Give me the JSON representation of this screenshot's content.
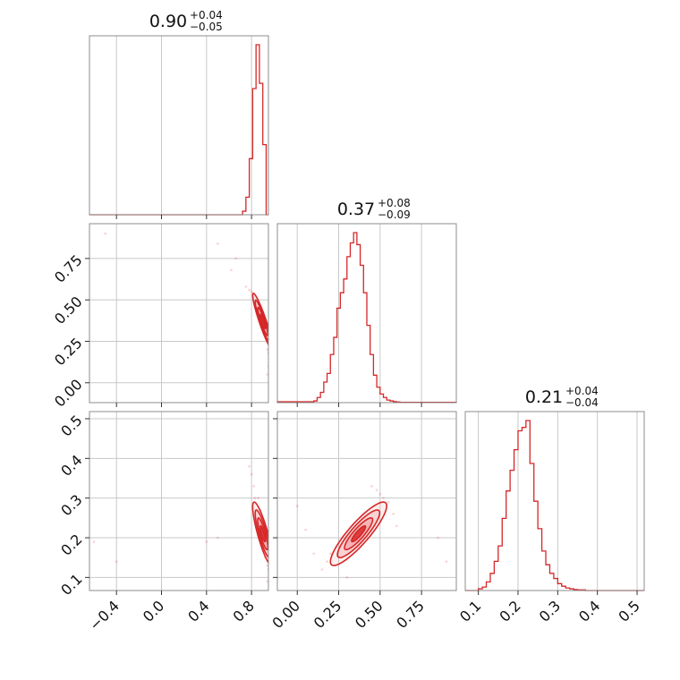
{
  "figure": {
    "color": "#d62728",
    "light_color": "#f2a0a2",
    "grid": true
  },
  "parameters": [
    {
      "title_value": "0.90",
      "title_plus": "+0.04",
      "title_minus": "−0.05",
      "range": [
        -0.64,
        0.95
      ],
      "ticks": [
        -0.4,
        0.0,
        0.4,
        0.8
      ],
      "tick_labels": [
        "−0.4",
        "0.0",
        "0.4",
        "0.8"
      ],
      "vticks": [],
      "vtick_labels": []
    },
    {
      "title_value": "0.37",
      "title_plus": "+0.08",
      "title_minus": "−0.09",
      "range": [
        -0.12,
        0.96
      ],
      "ticks": [
        0.0,
        0.25,
        0.5,
        0.75
      ],
      "tick_labels": [
        "0.00",
        "0.25",
        "0.50",
        "0.75"
      ],
      "vticks": [
        0.0,
        0.25,
        0.5,
        0.75
      ],
      "vtick_labels": [
        "0.00",
        "0.25",
        "0.50",
        "0.75"
      ]
    },
    {
      "title_value": "0.21",
      "title_plus": "+0.04",
      "title_minus": "−0.04",
      "range": [
        0.067,
        0.518
      ],
      "ticks": [
        0.1,
        0.2,
        0.3,
        0.4,
        0.5
      ],
      "tick_labels": [
        "0.1",
        "0.2",
        "0.3",
        "0.4",
        "0.5"
      ],
      "vticks": [
        0.1,
        0.2,
        0.3,
        0.4,
        0.5
      ],
      "vtick_labels": [
        "0.1",
        "0.2",
        "0.3",
        "0.4",
        "0.5"
      ]
    }
  ],
  "chart_data": [
    {
      "type": "histogram",
      "parameter_index": 0,
      "edges": [
        -0.64,
        0.72,
        0.75,
        0.78,
        0.81,
        0.84,
        0.87,
        0.9,
        0.93,
        0.95
      ],
      "counts": [
        0.0,
        0.02,
        0.1,
        0.32,
        0.72,
        0.97,
        0.75,
        0.4,
        0.0
      ]
    },
    {
      "type": "histogram",
      "parameter_index": 1,
      "edges": [
        -0.12,
        0.1,
        0.12,
        0.14,
        0.16,
        0.18,
        0.2,
        0.22,
        0.24,
        0.26,
        0.28,
        0.3,
        0.32,
        0.34,
        0.36,
        0.38,
        0.4,
        0.42,
        0.44,
        0.46,
        0.48,
        0.5,
        0.52,
        0.54,
        0.56,
        0.58,
        0.6,
        0.62,
        0.96
      ],
      "counts": [
        0.005,
        0.01,
        0.03,
        0.06,
        0.12,
        0.17,
        0.28,
        0.38,
        0.55,
        0.64,
        0.72,
        0.85,
        0.93,
        0.99,
        0.92,
        0.8,
        0.64,
        0.45,
        0.28,
        0.16,
        0.09,
        0.05,
        0.03,
        0.015,
        0.01,
        0.006,
        0.004,
        0.002
      ]
    },
    {
      "type": "histogram",
      "parameter_index": 2,
      "edges": [
        0.067,
        0.1,
        0.11,
        0.12,
        0.13,
        0.14,
        0.15,
        0.16,
        0.17,
        0.18,
        0.19,
        0.2,
        0.21,
        0.22,
        0.23,
        0.24,
        0.25,
        0.26,
        0.27,
        0.28,
        0.29,
        0.3,
        0.31,
        0.32,
        0.33,
        0.34,
        0.35,
        0.37,
        0.518
      ],
      "counts": [
        0.0,
        0.01,
        0.02,
        0.05,
        0.1,
        0.17,
        0.26,
        0.42,
        0.58,
        0.7,
        0.82,
        0.93,
        0.95,
        0.99,
        0.74,
        0.52,
        0.36,
        0.23,
        0.15,
        0.1,
        0.07,
        0.04,
        0.025,
        0.015,
        0.01,
        0.006,
        0.004,
        0.0
      ]
    },
    {
      "type": "contour",
      "x_parameter_index": 0,
      "y_parameter_index": 1,
      "center": [
        0.9,
        0.37
      ],
      "sigma": [
        0.045,
        0.085
      ],
      "correlation": -0.93,
      "levels_sigma": [
        0.5,
        1.0,
        1.5,
        2.0
      ],
      "scatter_points": [
        [
          0.75,
          0.58
        ],
        [
          0.78,
          0.56
        ],
        [
          0.8,
          0.55
        ],
        [
          0.82,
          0.52
        ],
        [
          0.84,
          0.5
        ],
        [
          0.86,
          0.47
        ],
        [
          0.88,
          0.44
        ],
        [
          0.91,
          0.3
        ],
        [
          0.93,
          0.27
        ],
        [
          0.94,
          0.2
        ],
        [
          0.95,
          0.18
        ],
        [
          0.66,
          0.75
        ],
        [
          0.5,
          0.84
        ],
        [
          0.62,
          0.68
        ],
        [
          -0.5,
          0.9
        ],
        [
          0.95,
          0.1
        ],
        [
          0.94,
          0.05
        ]
      ]
    },
    {
      "type": "contour",
      "x_parameter_index": 0,
      "y_parameter_index": 2,
      "center": [
        0.9,
        0.21
      ],
      "sigma": [
        0.045,
        0.04
      ],
      "correlation": -0.85,
      "levels_sigma": [
        0.5,
        1.0,
        1.5,
        2.0
      ],
      "scatter_points": [
        [
          0.8,
          0.36
        ],
        [
          0.82,
          0.33
        ],
        [
          0.83,
          0.3
        ],
        [
          0.86,
          0.3
        ],
        [
          0.88,
          0.27
        ],
        [
          0.92,
          0.15
        ],
        [
          0.94,
          0.13
        ],
        [
          0.95,
          0.12
        ],
        [
          0.78,
          0.38
        ],
        [
          0.94,
          0.09
        ],
        [
          0.5,
          0.2
        ],
        [
          0.4,
          0.19
        ],
        [
          -0.6,
          0.19
        ],
        [
          -0.4,
          0.14
        ]
      ]
    },
    {
      "type": "contour",
      "x_parameter_index": 1,
      "y_parameter_index": 2,
      "center": [
        0.37,
        0.21
      ],
      "sigma": [
        0.085,
        0.04
      ],
      "correlation": 0.88,
      "levels_sigma": [
        0.5,
        1.0,
        1.5,
        2.0
      ],
      "scatter_points": [
        [
          0.15,
          0.12
        ],
        [
          0.18,
          0.14
        ],
        [
          0.2,
          0.16
        ],
        [
          0.5,
          0.31
        ],
        [
          0.52,
          0.3
        ],
        [
          0.55,
          0.29
        ],
        [
          0.48,
          0.32
        ],
        [
          0.45,
          0.33
        ],
        [
          0.58,
          0.26
        ],
        [
          0.6,
          0.23
        ],
        [
          0.1,
          0.16
        ],
        [
          0.05,
          0.22
        ],
        [
          0.0,
          0.28
        ],
        [
          0.85,
          0.2
        ],
        [
          0.9,
          0.14
        ],
        [
          0.3,
          0.1
        ]
      ]
    }
  ]
}
